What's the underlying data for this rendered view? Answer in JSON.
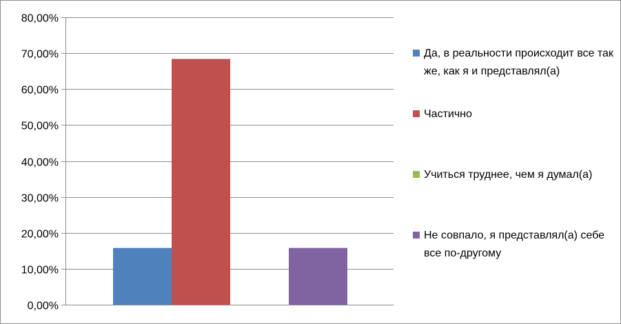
{
  "chart_data": {
    "type": "bar",
    "y_tick_labels": [
      "0,00%",
      "10,00%",
      "20,00%",
      "30,00%",
      "40,00%",
      "50,00%",
      "60,00%",
      "70,00%",
      "80,00%"
    ],
    "ylim": [
      0,
      80
    ],
    "y_unit": "%",
    "grid": true,
    "legend_position": "right",
    "series": [
      {
        "name": "Да, в реальности происходит все так же, как я и представлял(а)",
        "color": "#4f81bd",
        "value": 15.8
      },
      {
        "name": "Частично",
        "color": "#c0504d",
        "value": 68.4
      },
      {
        "name": "Учиться труднее, чем я думал(а)",
        "color": "#9bbb59",
        "value": 0
      },
      {
        "name": "Не совпало, я представлял(а) себе все по-другому",
        "color": "#8064a2",
        "value": 15.8
      }
    ]
  }
}
